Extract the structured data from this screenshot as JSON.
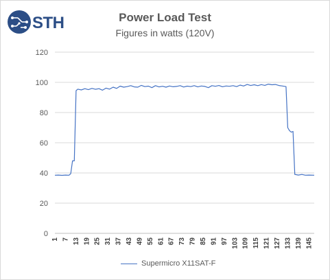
{
  "logo": {
    "text": "STH",
    "icon": "sth-logo-icon",
    "color": "#2c4e86"
  },
  "chart_data": {
    "type": "line",
    "title": "Power Load Test",
    "subtitle": "Figures in watts (120V)",
    "xlabel": "",
    "ylabel": "",
    "ylim": [
      0,
      120
    ],
    "yticks": [
      0,
      20,
      40,
      60,
      80,
      100,
      120
    ],
    "xlim": [
      1,
      148
    ],
    "xticks": [
      1,
      7,
      13,
      19,
      25,
      31,
      37,
      43,
      49,
      55,
      61,
      67,
      73,
      79,
      85,
      91,
      97,
      103,
      109,
      115,
      121,
      127,
      133,
      139,
      145
    ],
    "grid": true,
    "legend_position": "bottom",
    "series": [
      {
        "name": "Supermicro X11SAT-F",
        "color": "#4472c4",
        "x": [
          1,
          3,
          5,
          7,
          9,
          10,
          11,
          12,
          13,
          14,
          16,
          18,
          20,
          22,
          24,
          26,
          28,
          30,
          32,
          34,
          36,
          38,
          40,
          42,
          44,
          46,
          48,
          50,
          52,
          54,
          56,
          58,
          60,
          62,
          64,
          66,
          68,
          70,
          72,
          74,
          76,
          78,
          80,
          82,
          84,
          86,
          88,
          90,
          92,
          94,
          96,
          98,
          100,
          102,
          104,
          106,
          108,
          110,
          112,
          114,
          116,
          118,
          120,
          122,
          124,
          126,
          128,
          130,
          132,
          133,
          134,
          135,
          136,
          137,
          138,
          139,
          141,
          143,
          145,
          148
        ],
        "y": [
          38.5,
          38.6,
          38.4,
          38.6,
          38.5,
          39.5,
          48,
          48,
          94.5,
          95.5,
          95,
          95.8,
          95.2,
          96,
          95.4,
          95.8,
          94.8,
          96.2,
          95.5,
          96.8,
          96,
          97.5,
          96.8,
          97.2,
          97.8,
          97,
          96.8,
          98,
          97.2,
          97.5,
          96.5,
          97.8,
          97,
          97.4,
          96.8,
          97.6,
          97.1,
          97.3,
          97.8,
          96.9,
          97.5,
          97.2,
          97.8,
          97,
          97.6,
          97.3,
          96.5,
          97.8,
          97.4,
          97.9,
          97.1,
          97.6,
          97.4,
          97.8,
          97.2,
          98.2,
          97.6,
          98.6,
          97.9,
          98.4,
          97.8,
          98.5,
          98,
          98.8,
          98.4,
          98.6,
          97.9,
          97.6,
          97.2,
          70,
          68,
          67,
          67.5,
          39,
          38.8,
          38.6,
          39,
          38.5,
          38.6,
          38.5
        ]
      }
    ]
  }
}
